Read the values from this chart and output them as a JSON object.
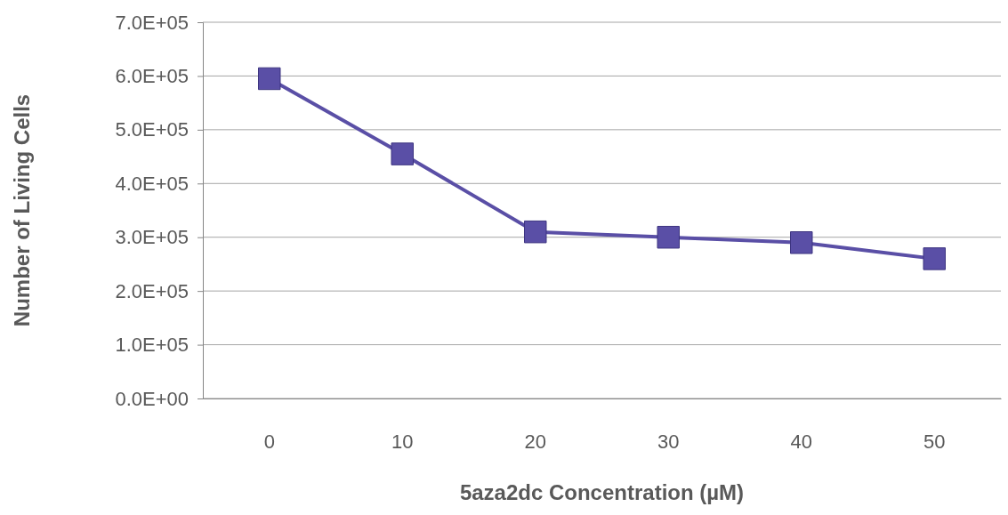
{
  "chart_data": {
    "type": "line",
    "xlabel": "5aza2dc Concentration (µM)",
    "ylabel": "Number of Living Cells",
    "categories": [
      "0",
      "10",
      "20",
      "30",
      "40",
      "50"
    ],
    "series": [
      {
        "color": "#5a4fa6",
        "values": [
          595000,
          455000,
          310000,
          300000,
          290000,
          260000
        ]
      }
    ],
    "ylim": [
      0,
      700000
    ],
    "yticks": [
      {
        "value": 0,
        "label": "0.0E+00"
      },
      {
        "value": 100000,
        "label": "1.0E+05"
      },
      {
        "value": 200000,
        "label": "2.0E+05"
      },
      {
        "value": 300000,
        "label": "3.0E+05"
      },
      {
        "value": 400000,
        "label": "4.0E+05"
      },
      {
        "value": 500000,
        "label": "5.0E+05"
      },
      {
        "value": 600000,
        "label": "6.0E+05"
      },
      {
        "value": 700000,
        "label": "7.0E+05"
      }
    ],
    "grid": "y",
    "marker": "square",
    "line_style": "solid"
  }
}
